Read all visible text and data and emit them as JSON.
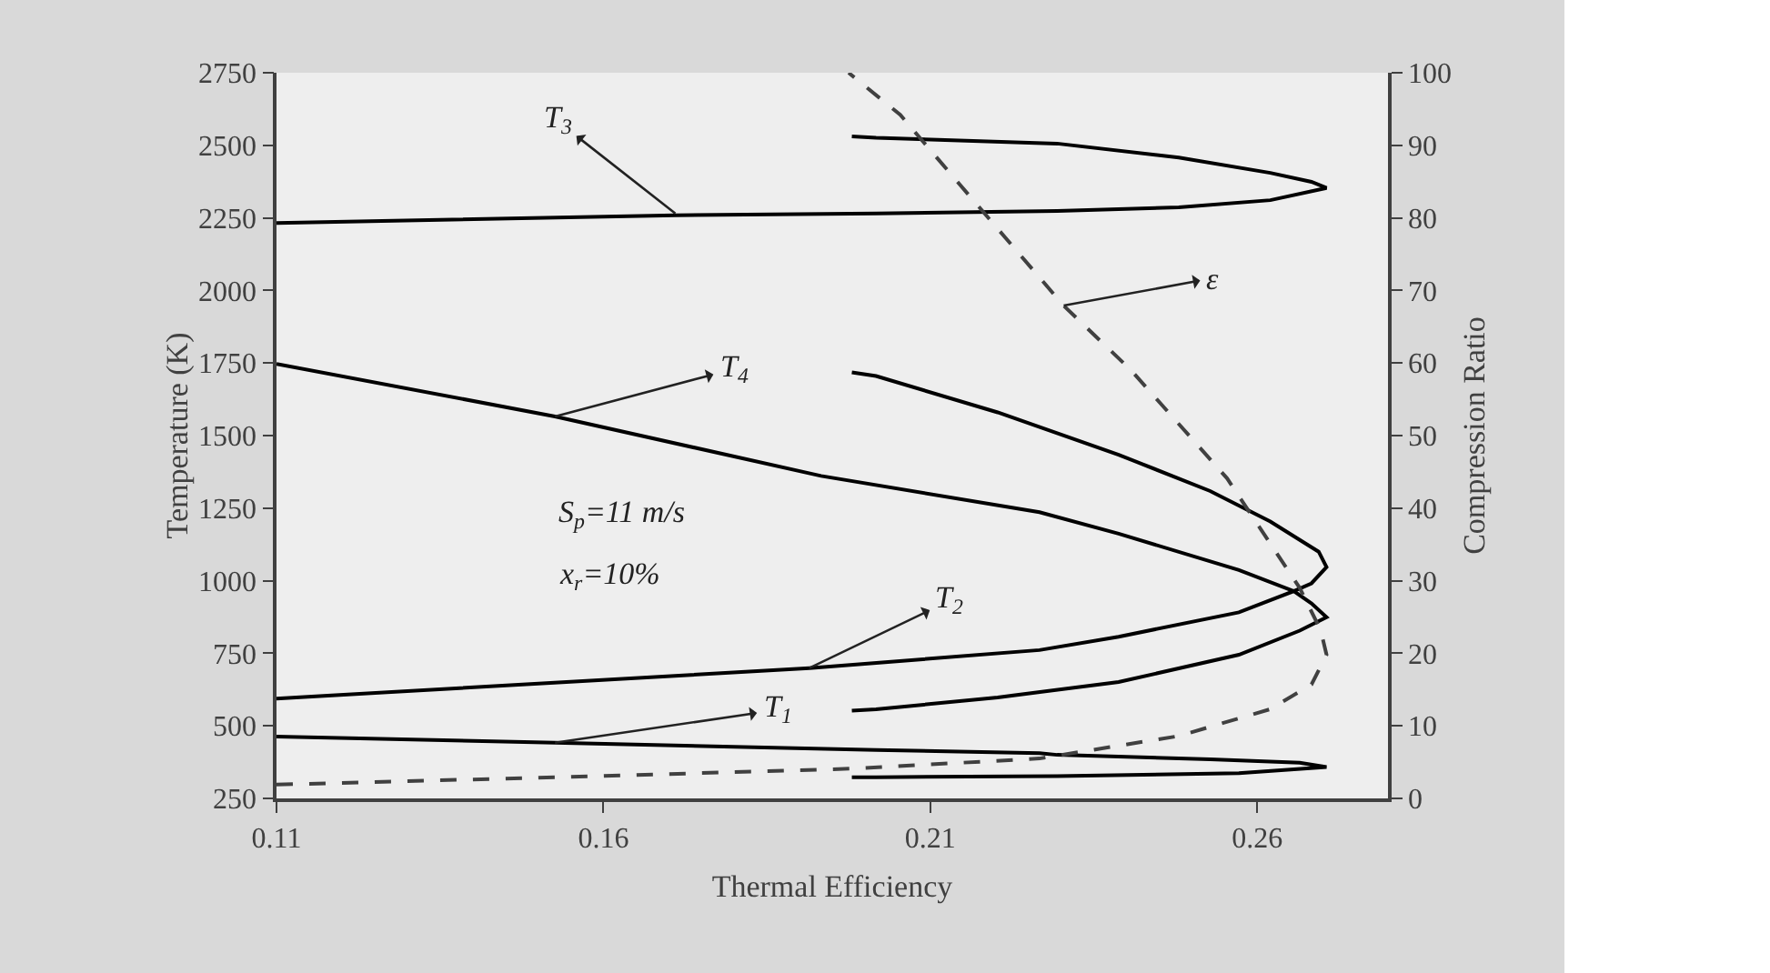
{
  "chart_data": {
    "type": "line",
    "xlabel": "Thermal Efficiency",
    "ylabel": "Temperature (K)",
    "y2label": "Compression Ratio",
    "xlim": [
      0.11,
      0.28
    ],
    "xticks": [
      0.11,
      0.16,
      0.21,
      0.26
    ],
    "ylim": [
      250,
      2750
    ],
    "yticks": [
      250,
      500,
      750,
      1000,
      1250,
      1500,
      1750,
      2000,
      2250,
      2500,
      2750
    ],
    "y2lim": [
      0,
      100
    ],
    "y2ticks": [
      0,
      10,
      20,
      30,
      40,
      50,
      60,
      70,
      80,
      90,
      100
    ],
    "grid": false,
    "marker": "none",
    "series": [
      {
        "color": "#000000",
        "line_style": "solid",
        "x": [
          0.198,
          0.2017,
          0.2294,
          0.248,
          0.262,
          0.2683,
          0.2706,
          0.262,
          0.248,
          0.2294,
          0.2017,
          0.171,
          0.11
        ],
        "values": [
          2531,
          2526,
          2506,
          2458,
          2405,
          2374,
          2353,
          2311,
          2286,
          2274,
          2265,
          2259,
          2232
        ]
      },
      {
        "color": "#000000",
        "line_style": "solid",
        "x": [
          0.198,
          0.2017,
          0.2203,
          0.2388,
          0.2528,
          0.262,
          0.2694,
          0.2706,
          0.2683,
          0.2656,
          0.2572,
          0.2388,
          0.2267,
          0.1933,
          0.1526,
          0.11
        ],
        "values": [
          1718,
          1705,
          1580,
          1434,
          1309,
          1204,
          1100,
          1047,
          991,
          964,
          1037,
          1162,
          1236,
          1361,
          1566,
          1747
        ]
      },
      {
        "color": "#000000",
        "line_style": "solid",
        "x": [
          0.198,
          0.2017,
          0.2203,
          0.2388,
          0.2572,
          0.2665,
          0.2706,
          0.2683,
          0.2656,
          0.2572,
          0.2388,
          0.2267,
          0.1915,
          0.11
        ],
        "values": [
          552,
          557,
          598,
          651,
          745,
          828,
          874,
          922,
          964,
          891,
          807,
          761,
          699,
          594
        ]
      },
      {
        "color": "#000000",
        "line_style": "solid",
        "x": [
          0.198,
          0.2017,
          0.2294,
          0.2572,
          0.2706,
          0.2665,
          0.2528,
          0.2294,
          0.2267,
          0.2017,
          0.1526,
          0.11
        ],
        "values": [
          323,
          323,
          327,
          337,
          358,
          373,
          385,
          400,
          406,
          417,
          442,
          463
        ]
      },
      {
        "color": "#404040",
        "line_style": "dashed",
        "axis": "y2",
        "x": [
          0.11,
          0.1563,
          0.198,
          0.2267,
          0.248,
          0.262,
          0.2683,
          0.2706,
          0.2697,
          0.2665,
          0.2554,
          0.2406,
          0.2304,
          0.2165,
          0.2054,
          0.1975
        ],
        "values": [
          1.9,
          3.0,
          4.1,
          5.5,
          8.6,
          12.3,
          15.7,
          19.8,
          23.2,
          29.0,
          44.1,
          59.1,
          67.9,
          82.5,
          94.2,
          100
        ]
      }
    ],
    "annotations": [
      {
        "text": "T$_{3}$",
        "x": 0.171,
        "y": 2265
      },
      {
        "text": "T$_{4}$",
        "x": 0.1526,
        "y": 1566
      },
      {
        "text": "T$_{2}$",
        "x": 0.1915,
        "y": 699
      },
      {
        "text": "T$_{1}$",
        "x": 0.1526,
        "y": 442
      },
      {
        "text": "ε",
        "x": 0.2304,
        "y": 1948
      },
      "S$_{p}$=11 m/s",
      "x$_{r}$=10%"
    ]
  }
}
